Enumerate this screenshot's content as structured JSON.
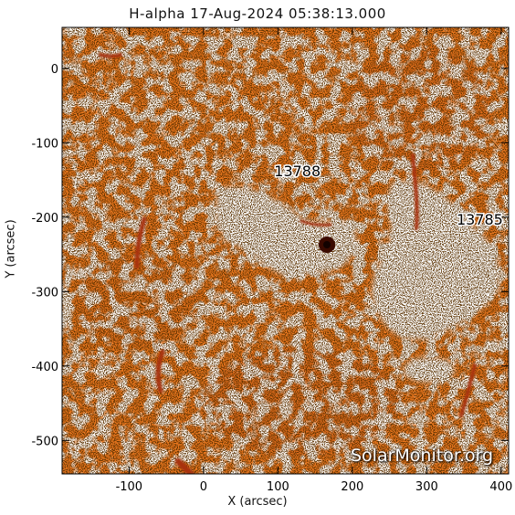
{
  "title": "H-alpha 17-Aug-2024 05:38:13.000",
  "xaxis": {
    "label": "X (arcsec)",
    "ticks": [
      -100,
      0,
      100,
      200,
      300,
      400
    ],
    "range": [
      -190,
      410
    ]
  },
  "yaxis": {
    "label": "Y (arcsec)",
    "ticks": [
      0,
      -100,
      -200,
      -300,
      -400,
      -500
    ],
    "range": [
      -545,
      55
    ]
  },
  "regions": [
    {
      "label": "13788",
      "x": 95,
      "y": -145
    },
    {
      "label": "13785",
      "x": 340,
      "y": -210
    }
  ],
  "watermark": "SolarMonitor.org",
  "colors": {
    "chromosphere": "#e8761e",
    "bright": "#ffffff",
    "dark": "#1a0500",
    "filament": "#a83008"
  }
}
